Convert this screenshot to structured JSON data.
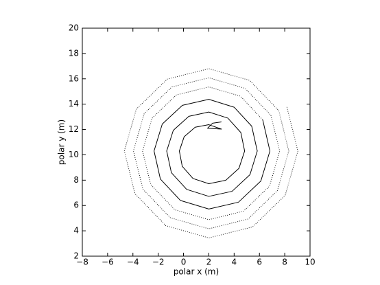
{
  "chart_data": {
    "type": "line",
    "xlabel": "polar x (m)",
    "ylabel": "polar y (m)",
    "xlim": [
      -8,
      10
    ],
    "xticks": [
      {
        "value": -8,
        "label": "−8"
      },
      {
        "value": -6,
        "label": "−6"
      },
      {
        "value": -4,
        "label": "−4"
      },
      {
        "value": -2,
        "label": "−2"
      },
      0,
      2,
      4,
      6,
      8,
      10
    ],
    "ylim": [
      2,
      20
    ],
    "yticks": [
      2,
      4,
      6,
      8,
      10,
      12,
      14,
      16,
      18,
      20
    ],
    "grid": false,
    "series": [
      {
        "color": "#000000",
        "linestyle": "solid",
        "x": [
          3.0,
          2.3,
          1.9,
          3.0,
          2.0,
          0.92,
          0.05,
          -0.33,
          -0.1,
          0.75,
          2.0,
          3.34,
          4.38,
          4.83,
          4.53,
          3.5,
          2.0,
          0.42,
          -0.81,
          -1.33,
          -0.96,
          0.25,
          2.0,
          3.84,
          5.25,
          5.83,
          5.39,
          4.0,
          2.0,
          -0.09,
          -1.68,
          -2.33,
          -1.83,
          -0.25,
          2.0,
          4.34,
          6.11,
          6.83,
          6.26
        ],
        "y": [
          12.6,
          12.5,
          12.1,
          12.03,
          12.38,
          12.18,
          11.43,
          10.3,
          9.09,
          8.13,
          7.72,
          7.99,
          8.93,
          10.3,
          11.76,
          12.9,
          13.38,
          13.04,
          11.93,
          10.3,
          8.59,
          7.27,
          6.72,
          7.12,
          8.43,
          10.3,
          12.26,
          13.76,
          14.38,
          13.91,
          12.43,
          10.3,
          8.09,
          6.4,
          5.72,
          6.26,
          7.93,
          10.3,
          12.76
        ]
      },
      {
        "color": "#000000",
        "linestyle": "dotted",
        "x": [
          6.26,
          4.5,
          2.0,
          -0.56,
          -2.49,
          -3.24,
          -2.59,
          -0.68,
          2.0,
          4.74,
          6.8,
          7.6,
          6.9,
          4.86,
          2.0,
          -0.92,
          -3.11,
          -3.96,
          -3.21,
          -1.04,
          2.0,
          5.1,
          7.42,
          8.32,
          7.53,
          5.22,
          2.0,
          -1.28,
          -3.73,
          -4.68,
          -3.84,
          -1.4,
          2.0,
          5.46,
          8.04,
          9.04,
          8.15
        ],
        "y": [
          12.76,
          14.63,
          15.36,
          14.73,
          12.89,
          10.3,
          7.65,
          5.66,
          4.88,
          5.55,
          7.53,
          10.3,
          13.13,
          15.25,
          16.08,
          15.36,
          13.25,
          10.3,
          7.29,
          5.03,
          4.16,
          4.93,
          7.17,
          10.3,
          13.49,
          15.88,
          16.8,
          15.98,
          13.61,
          10.3,
          6.93,
          4.41,
          3.44,
          4.31,
          6.81,
          10.3,
          13.85
        ]
      }
    ]
  }
}
